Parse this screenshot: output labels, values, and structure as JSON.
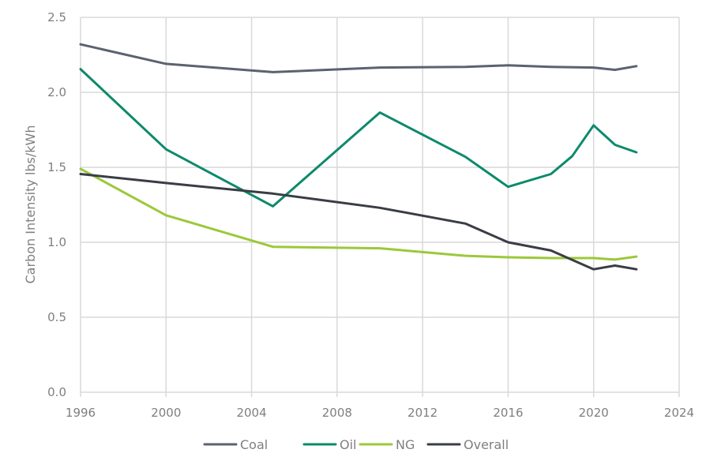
{
  "chart_data": {
    "type": "line",
    "title": "",
    "xlabel": "",
    "ylabel": "Carbon Intensity lbs/kWh",
    "xlim": [
      1996,
      2024
    ],
    "ylim": [
      0,
      2.5
    ],
    "x_ticks": [
      "1996",
      "2000",
      "2004",
      "2008",
      "2012",
      "2016",
      "2020",
      "2024"
    ],
    "y_ticks": [
      "0.0",
      "0.5",
      "1.0",
      "1.5",
      "2.0",
      "2.5"
    ],
    "grid": "vertical-and-horizontal",
    "legend_position": "bottom",
    "series": [
      {
        "name": "Coal",
        "color": "#5b6270",
        "points": [
          [
            1996,
            2.32
          ],
          [
            2000,
            2.19
          ],
          [
            2005,
            2.135
          ],
          [
            2010,
            2.165
          ],
          [
            2014,
            2.17
          ],
          [
            2016,
            2.18
          ],
          [
            2018,
            2.17
          ],
          [
            2020,
            2.165
          ],
          [
            2021,
            2.15
          ],
          [
            2022,
            2.175
          ]
        ]
      },
      {
        "name": "Oil",
        "color": "#0d8a6b",
        "points": [
          [
            1996,
            2.155
          ],
          [
            2000,
            1.62
          ],
          [
            2005,
            1.24
          ],
          [
            2010,
            1.865
          ],
          [
            2014,
            1.57
          ],
          [
            2016,
            1.37
          ],
          [
            2018,
            1.455
          ],
          [
            2019,
            1.575
          ],
          [
            2020,
            1.78
          ],
          [
            2021,
            1.65
          ],
          [
            2022,
            1.6
          ]
        ]
      },
      {
        "name": "NG",
        "color": "#9cc83b",
        "points": [
          [
            1996,
            1.49
          ],
          [
            2000,
            1.18
          ],
          [
            2005,
            0.97
          ],
          [
            2010,
            0.96
          ],
          [
            2014,
            0.91
          ],
          [
            2016,
            0.9
          ],
          [
            2018,
            0.895
          ],
          [
            2020,
            0.895
          ],
          [
            2021,
            0.885
          ],
          [
            2022,
            0.905
          ]
        ]
      },
      {
        "name": "Overall",
        "color": "#3a3d47",
        "points": [
          [
            1996,
            1.455
          ],
          [
            2000,
            1.395
          ],
          [
            2005,
            1.325
          ],
          [
            2010,
            1.23
          ],
          [
            2014,
            1.125
          ],
          [
            2016,
            1.0
          ],
          [
            2018,
            0.945
          ],
          [
            2020,
            0.82
          ],
          [
            2021,
            0.845
          ],
          [
            2022,
            0.82
          ]
        ]
      }
    ]
  }
}
